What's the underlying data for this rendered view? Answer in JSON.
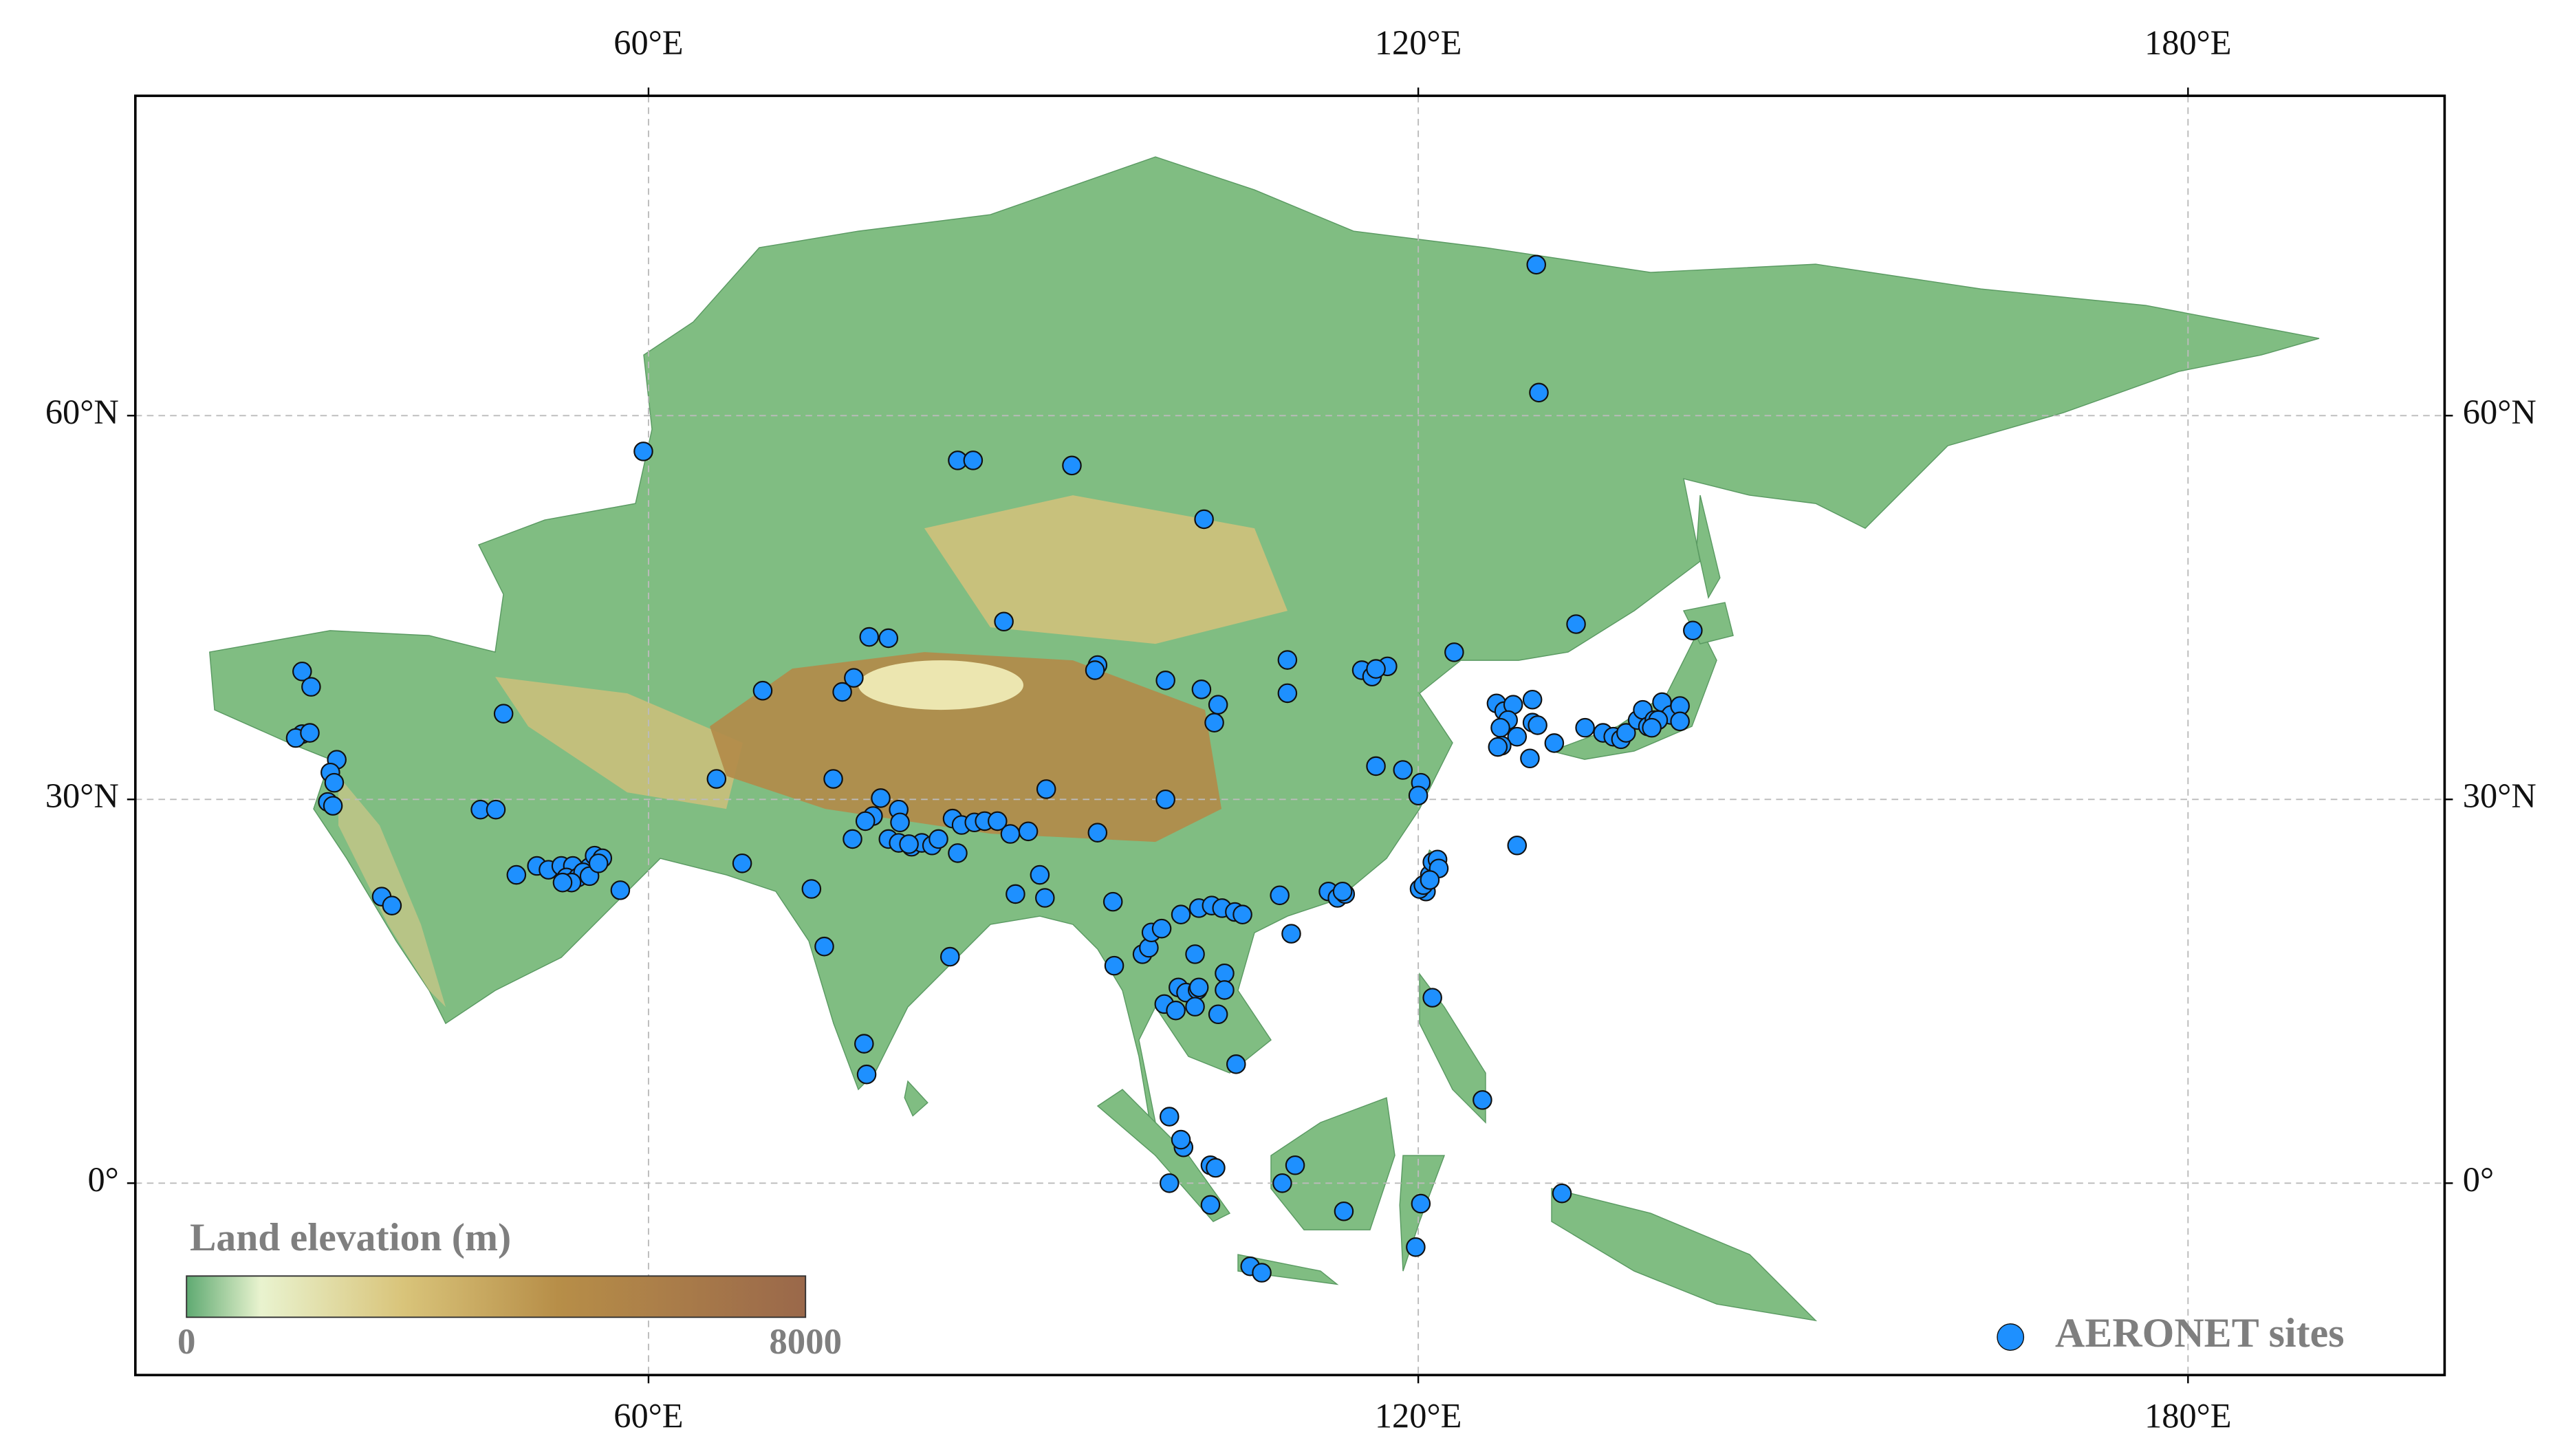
{
  "chart_data": {
    "type": "scatter",
    "xlim": [
      20,
      200
    ],
    "ylim": [
      -15,
      85
    ],
    "xticks": [
      {
        "value": 60,
        "label": "60°E"
      },
      {
        "value": 120,
        "label": "120°E"
      },
      {
        "value": 180,
        "label": "180°E"
      }
    ],
    "yticks": [
      {
        "value": 0,
        "label": "0°"
      },
      {
        "value": 30,
        "label": "30°N"
      },
      {
        "value": 60,
        "label": "60°N"
      }
    ],
    "grid": true,
    "legend": "lower right",
    "colorbar": {
      "title": "Land elevation (m)",
      "min": 0,
      "max": 8000
    },
    "series": [
      {
        "name": "AERONET sites",
        "color": "#1e90ff",
        "x": [
          129.2,
          129.4,
          59.6,
          84.1,
          85.3,
          93,
          103.3,
          87.7,
          132.3,
          141.4,
          77.2,
          78.7,
          122.8,
          33,
          33.7,
          68.9,
          76,
          75.1,
          95,
          94.8,
          109.8,
          109.8,
          100.3,
          103.1,
          104.4,
          104.1,
          115.6,
          116.4,
          117.6,
          116.7,
          48.7,
          33,
          32.5,
          33.6,
          35.7,
          35.2,
          35.5,
          35,
          35.4,
          126.1,
          126.7,
          127.4,
          128.9,
          127,
          126.4,
          127.7,
          126.5,
          128.9,
          128.7,
          126.2,
          130.6,
          129.3,
          133,
          134.4,
          135.2,
          135.8,
          136.2,
          137.1,
          137.5,
          137.9,
          138.4,
          139,
          139.7,
          140.4,
          140.4,
          138.7,
          138.2,
          65.3,
          74.4,
          91,
          100.3,
          116.7,
          118.8,
          120.2,
          120,
          46.9,
          48.1,
          78.1,
          79.5,
          79.6,
          77.5,
          76.9,
          75.9,
          78.7,
          79.5,
          80.5,
          81.3,
          82.1,
          82.6,
          83.7,
          84.4,
          85.4,
          86.2,
          87.2,
          88.2,
          89.6,
          84.1,
          80.3,
          95,
          67.3,
          72.7,
          88.6,
          90.5,
          90.9,
          49.7,
          51.3,
          52.2,
          53.2,
          54.1,
          53.6,
          54.5,
          55.4,
          55.8,
          56.4,
          54.9,
          55.4,
          56.1,
          57.8,
          54,
          53.3,
          39.2,
          40,
          73.7,
          83.5,
          96.2,
          101.5,
          102.9,
          103.9,
          104.7,
          105.7,
          106.3,
          98.5,
          99,
          99.2,
          100,
          102.6,
          104.9,
          104.9,
          101.3,
          101.9,
          102.8,
          100.2,
          101.1,
          102.6,
          102.9,
          104.4,
          96.3,
          105.8,
          110.1,
          109.2,
          113,
          113.7,
          114.3,
          114.1,
          120.6,
          120.9,
          121.1,
          121.5,
          121.6,
          120.1,
          120.4,
          120.9,
          127.7,
          121.1,
          125,
          76.8,
          77,
          100.6,
          101.7,
          101.5,
          103.8,
          104.2,
          100.6,
          103.8,
          110.4,
          109.4,
          106.9,
          107.8,
          114.2,
          120.2,
          119.8,
          131.2
        ],
        "y": [
          71.8,
          61.8,
          57.2,
          56.5,
          56.5,
          56.1,
          51.9,
          43.9,
          43.7,
          43.2,
          42.7,
          42.6,
          41.5,
          40,
          38.8,
          38.5,
          39.5,
          38.4,
          40.5,
          40.1,
          40.9,
          38.3,
          39.3,
          38.6,
          37.4,
          36,
          40.1,
          39.6,
          40.4,
          40.2,
          36.7,
          35.1,
          34.8,
          35.2,
          33.1,
          32.1,
          31.3,
          29.8,
          29.5,
          37.5,
          36.9,
          37.4,
          37.8,
          36.2,
          35.6,
          34.9,
          34.2,
          36,
          33.2,
          34.1,
          34.4,
          35.8,
          35.6,
          35.2,
          34.9,
          34.7,
          35.2,
          36.2,
          37,
          35.7,
          36.2,
          37.6,
          36.6,
          37.3,
          36.1,
          36.2,
          35.6,
          31.6,
          31.6,
          30.8,
          30,
          32.6,
          32.3,
          31.3,
          30.3,
          29.2,
          29.2,
          30.1,
          29.2,
          28.2,
          28.7,
          28.3,
          26.9,
          26.9,
          26.6,
          26.3,
          26.6,
          26.4,
          26.9,
          28.5,
          28,
          28.2,
          28.3,
          28.3,
          27.3,
          27.5,
          25.8,
          26.5,
          27.4,
          25,
          23,
          22.6,
          24.1,
          22.3,
          24.1,
          24.8,
          24.5,
          24.8,
          24.8,
          23.9,
          23.9,
          24.7,
          25.6,
          25.4,
          24.3,
          24,
          25,
          22.9,
          23.5,
          23.5,
          22.4,
          21.7,
          18.5,
          17.7,
          22,
          21,
          21.5,
          21.7,
          21.5,
          21.2,
          21,
          17.9,
          18.4,
          19.6,
          19.9,
          17.9,
          16.4,
          15.1,
          15.3,
          14.9,
          15.1,
          14,
          13.5,
          13.8,
          15.3,
          13.2,
          17,
          9.3,
          19.5,
          22.5,
          22.8,
          22.3,
          22.6,
          22.8,
          22.8,
          24.1,
          25.1,
          25.3,
          24.6,
          23,
          23.3,
          23.7,
          26.4,
          14.5,
          6.5,
          10.9,
          8.5,
          5.2,
          2.8,
          3.4,
          1.4,
          1.2,
          0,
          -1.7,
          1.4,
          0,
          -6.5,
          -7,
          -2.2,
          -1.6,
          -5,
          -0.8
        ]
      }
    ]
  }
}
